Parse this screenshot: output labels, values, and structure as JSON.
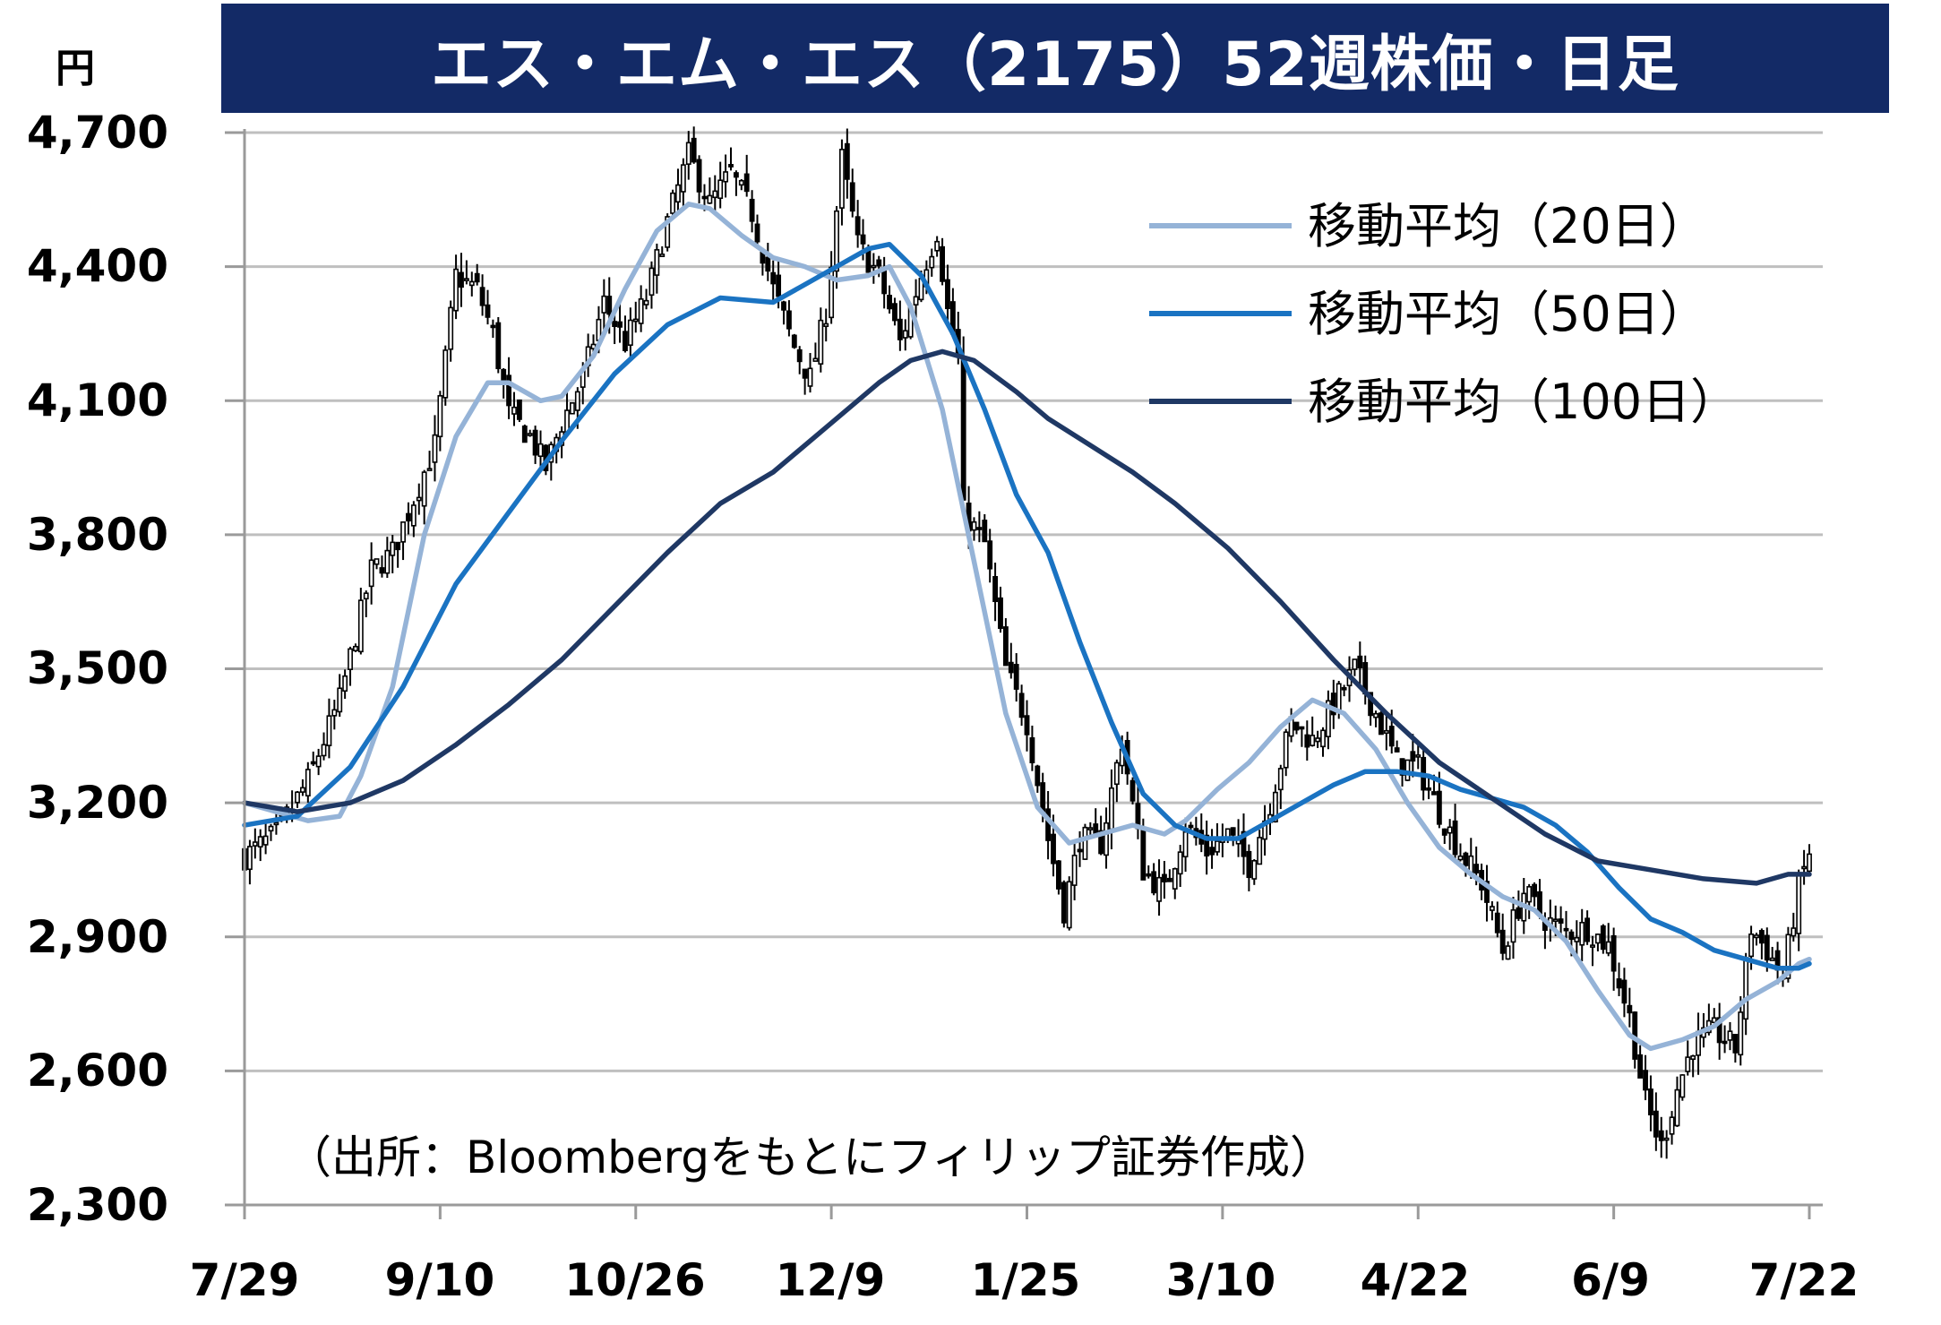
{
  "chart_data": {
    "type": "candlestick",
    "title": "エス・エム・エス（2175）52週株価・日足",
    "unit": "円",
    "source": "（出所：Bloombergをもとにフィリップ証券作成）",
    "ylim": [
      2300,
      4700
    ],
    "y_ticks": [
      "4,700",
      "4,400",
      "4,100",
      "3,800",
      "3,500",
      "3,200",
      "2,900",
      "2,600",
      "2,300"
    ],
    "y_tick_values": [
      4700,
      4400,
      4100,
      3800,
      3500,
      3200,
      2900,
      2600,
      2300
    ],
    "x_ticks": [
      "7/29",
      "9/10",
      "10/26",
      "12/9",
      "1/25",
      "3/10",
      "4/22",
      "6/9",
      "7/22"
    ],
    "grid": true,
    "legend_position": "top-right",
    "price_anchors": [
      [
        0,
        3080
      ],
      [
        6,
        3130
      ],
      [
        12,
        3250
      ],
      [
        18,
        3430
      ],
      [
        24,
        3720
      ],
      [
        28,
        3760
      ],
      [
        32,
        3880
      ],
      [
        36,
        4000
      ],
      [
        40,
        4380
      ],
      [
        44,
        4350
      ],
      [
        47,
        4250
      ],
      [
        50,
        4070
      ],
      [
        54,
        4020
      ],
      [
        57,
        3950
      ],
      [
        60,
        4050
      ],
      [
        64,
        4150
      ],
      [
        68,
        4320
      ],
      [
        72,
        4230
      ],
      [
        76,
        4330
      ],
      [
        80,
        4500
      ],
      [
        84,
        4650
      ],
      [
        88,
        4540
      ],
      [
        92,
        4610
      ],
      [
        96,
        4520
      ],
      [
        100,
        4350
      ],
      [
        104,
        4220
      ],
      [
        107,
        4150
      ],
      [
        110,
        4300
      ],
      [
        113,
        4640
      ],
      [
        116,
        4450
      ],
      [
        120,
        4380
      ],
      [
        124,
        4230
      ],
      [
        128,
        4380
      ],
      [
        131,
        4480
      ],
      [
        133,
        4300
      ],
      [
        135,
        4200
      ],
      [
        136,
        3850
      ],
      [
        140,
        3780
      ],
      [
        144,
        3500
      ],
      [
        148,
        3380
      ],
      [
        152,
        3120
      ],
      [
        155,
        2960
      ],
      [
        158,
        3120
      ],
      [
        162,
        3110
      ],
      [
        166,
        3340
      ],
      [
        170,
        3050
      ],
      [
        174,
        3000
      ],
      [
        178,
        3150
      ],
      [
        182,
        3090
      ],
      [
        186,
        3130
      ],
      [
        190,
        3060
      ],
      [
        194,
        3200
      ],
      [
        198,
        3380
      ],
      [
        202,
        3340
      ],
      [
        206,
        3420
      ],
      [
        210,
        3500
      ],
      [
        214,
        3400
      ],
      [
        218,
        3290
      ],
      [
        222,
        3280
      ],
      [
        226,
        3180
      ],
      [
        230,
        3090
      ],
      [
        234,
        3020
      ],
      [
        238,
        2870
      ],
      [
        242,
        3000
      ],
      [
        246,
        2940
      ],
      [
        250,
        2910
      ],
      [
        254,
        2920
      ],
      [
        258,
        2880
      ],
      [
        262,
        2720
      ],
      [
        265,
        2530
      ],
      [
        268,
        2430
      ],
      [
        271,
        2560
      ],
      [
        274,
        2660
      ],
      [
        278,
        2690
      ],
      [
        282,
        2650
      ],
      [
        285,
        2920
      ],
      [
        288,
        2870
      ],
      [
        291,
        2810
      ],
      [
        294,
        3010
      ],
      [
        296,
        3090
      ]
    ],
    "series": [
      {
        "name": "移動平均（20日）",
        "color": "#95b3d7",
        "points": [
          [
            0,
            3200
          ],
          [
            12,
            3160
          ],
          [
            18,
            3170
          ],
          [
            22,
            3260
          ],
          [
            28,
            3460
          ],
          [
            34,
            3800
          ],
          [
            40,
            4020
          ],
          [
            46,
            4140
          ],
          [
            50,
            4140
          ],
          [
            56,
            4100
          ],
          [
            60,
            4110
          ],
          [
            66,
            4200
          ],
          [
            72,
            4350
          ],
          [
            78,
            4480
          ],
          [
            84,
            4540
          ],
          [
            88,
            4530
          ],
          [
            94,
            4470
          ],
          [
            100,
            4420
          ],
          [
            106,
            4400
          ],
          [
            112,
            4370
          ],
          [
            118,
            4380
          ],
          [
            122,
            4400
          ],
          [
            126,
            4310
          ],
          [
            132,
            4080
          ],
          [
            138,
            3740
          ],
          [
            144,
            3400
          ],
          [
            150,
            3190
          ],
          [
            156,
            3110
          ],
          [
            162,
            3130
          ],
          [
            168,
            3150
          ],
          [
            174,
            3130
          ],
          [
            178,
            3160
          ],
          [
            184,
            3230
          ],
          [
            190,
            3290
          ],
          [
            196,
            3370
          ],
          [
            202,
            3430
          ],
          [
            208,
            3400
          ],
          [
            214,
            3320
          ],
          [
            220,
            3200
          ],
          [
            226,
            3100
          ],
          [
            232,
            3040
          ],
          [
            238,
            2990
          ],
          [
            244,
            2960
          ],
          [
            250,
            2890
          ],
          [
            256,
            2780
          ],
          [
            262,
            2680
          ],
          [
            266,
            2650
          ],
          [
            272,
            2670
          ],
          [
            278,
            2700
          ],
          [
            284,
            2760
          ],
          [
            290,
            2800
          ],
          [
            294,
            2840
          ],
          [
            296,
            2850
          ]
        ]
      },
      {
        "name": "移動平均（50日）",
        "color": "#1a73c2",
        "points": [
          [
            0,
            3150
          ],
          [
            10,
            3170
          ],
          [
            20,
            3280
          ],
          [
            30,
            3460
          ],
          [
            40,
            3690
          ],
          [
            50,
            3850
          ],
          [
            60,
            4010
          ],
          [
            70,
            4160
          ],
          [
            80,
            4270
          ],
          [
            90,
            4330
          ],
          [
            100,
            4320
          ],
          [
            106,
            4360
          ],
          [
            112,
            4400
          ],
          [
            118,
            4440
          ],
          [
            122,
            4450
          ],
          [
            128,
            4380
          ],
          [
            134,
            4250
          ],
          [
            140,
            4080
          ],
          [
            146,
            3890
          ],
          [
            152,
            3760
          ],
          [
            158,
            3560
          ],
          [
            164,
            3380
          ],
          [
            170,
            3220
          ],
          [
            176,
            3150
          ],
          [
            182,
            3120
          ],
          [
            188,
            3120
          ],
          [
            194,
            3160
          ],
          [
            200,
            3200
          ],
          [
            206,
            3240
          ],
          [
            212,
            3270
          ],
          [
            218,
            3270
          ],
          [
            224,
            3260
          ],
          [
            230,
            3230
          ],
          [
            236,
            3210
          ],
          [
            242,
            3190
          ],
          [
            248,
            3150
          ],
          [
            254,
            3090
          ],
          [
            260,
            3010
          ],
          [
            266,
            2940
          ],
          [
            272,
            2910
          ],
          [
            278,
            2870
          ],
          [
            284,
            2850
          ],
          [
            290,
            2830
          ],
          [
            294,
            2830
          ],
          [
            296,
            2840
          ]
        ]
      },
      {
        "name": "移動平均（100日）",
        "color": "#1f3864",
        "points": [
          [
            0,
            3200
          ],
          [
            10,
            3180
          ],
          [
            20,
            3200
          ],
          [
            30,
            3250
          ],
          [
            40,
            3330
          ],
          [
            50,
            3420
          ],
          [
            60,
            3520
          ],
          [
            70,
            3640
          ],
          [
            80,
            3760
          ],
          [
            90,
            3870
          ],
          [
            100,
            3940
          ],
          [
            110,
            4040
          ],
          [
            120,
            4140
          ],
          [
            126,
            4190
          ],
          [
            132,
            4210
          ],
          [
            138,
            4190
          ],
          [
            146,
            4120
          ],
          [
            152,
            4060
          ],
          [
            160,
            4000
          ],
          [
            168,
            3940
          ],
          [
            176,
            3870
          ],
          [
            186,
            3770
          ],
          [
            196,
            3650
          ],
          [
            206,
            3520
          ],
          [
            216,
            3400
          ],
          [
            226,
            3290
          ],
          [
            236,
            3210
          ],
          [
            246,
            3130
          ],
          [
            256,
            3070
          ],
          [
            266,
            3050
          ],
          [
            276,
            3030
          ],
          [
            286,
            3020
          ],
          [
            292,
            3040
          ],
          [
            296,
            3040
          ]
        ]
      }
    ]
  }
}
